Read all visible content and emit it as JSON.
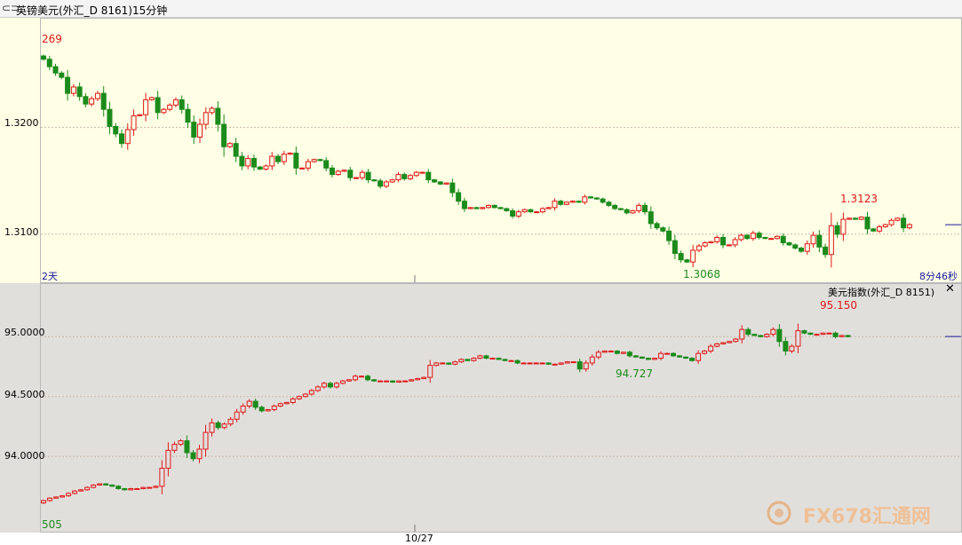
{
  "window": {
    "title": "英镑美元(外汇_D 8161)15分钟",
    "lower_title": "美元指数(外汇_D 8151)",
    "period_label": "2天",
    "countdown": "8分46秒",
    "date_label": "10/27",
    "watermark_text": "FX678汇通网"
  },
  "chart_data": [
    {
      "type": "candlestick",
      "name": "英镑美元",
      "y_ticks": [
        "1.3200",
        "1.3100"
      ],
      "ylim": [
        1.3055,
        1.3302
      ],
      "last_price_marker": 1.3109,
      "annotations": {
        "top_left": "269",
        "high": "1.3123",
        "low": "1.3068",
        "bottom_left": ""
      },
      "closes": [
        1.3264,
        1.3257,
        1.3251,
        1.3247,
        1.3232,
        1.3238,
        1.3229,
        1.3222,
        1.3227,
        1.3232,
        1.3217,
        1.3201,
        1.3194,
        1.3185,
        1.3198,
        1.3211,
        1.3212,
        1.3226,
        1.3228,
        1.3214,
        1.3217,
        1.3221,
        1.3226,
        1.3217,
        1.3205,
        1.3191,
        1.3203,
        1.3214,
        1.3218,
        1.3203,
        1.3182,
        1.3185,
        1.3173,
        1.3164,
        1.3171,
        1.3163,
        1.3161,
        1.3164,
        1.3173,
        1.3168,
        1.3175,
        1.3176,
        1.3162,
        1.3162,
        1.3168,
        1.317,
        1.3169,
        1.3162,
        1.3156,
        1.3159,
        1.316,
        1.3153,
        1.3153,
        1.3158,
        1.3151,
        1.315,
        1.3145,
        1.3149,
        1.3151,
        1.3156,
        1.3152,
        1.3155,
        1.3158,
        1.3158,
        1.3151,
        1.3149,
        1.3147,
        1.3148,
        1.3139,
        1.3131,
        1.3124,
        1.3125,
        1.3124,
        1.3125,
        1.3127,
        1.3125,
        1.3124,
        1.3122,
        1.3117,
        1.3121,
        1.3123,
        1.3121,
        1.3121,
        1.3124,
        1.3125,
        1.3131,
        1.3128,
        1.313,
        1.3131,
        1.313,
        1.3135,
        1.3134,
        1.3133,
        1.313,
        1.3127,
        1.3124,
        1.3123,
        1.312,
        1.3122,
        1.3127,
        1.3121,
        1.311,
        1.3106,
        1.3103,
        1.3094,
        1.3082,
        1.3076,
        1.3074,
        1.3085,
        1.3089,
        1.3092,
        1.3093,
        1.3097,
        1.309,
        1.309,
        1.3095,
        1.3099,
        1.3096,
        1.3101,
        1.3097,
        1.3096,
        1.3096,
        1.3098,
        1.3092,
        1.309,
        1.3087,
        1.3084,
        1.3091,
        1.3099,
        1.3088,
        1.3081,
        1.3108,
        1.31,
        1.3114,
        1.3115,
        1.3114,
        1.3116,
        1.3105,
        1.3103,
        1.3107,
        1.3109,
        1.3113,
        1.3115,
        1.3106,
        1.3109
      ]
    },
    {
      "type": "candlestick",
      "name": "美元指数",
      "y_ticks": [
        "95.0000",
        "94.5000",
        "94.0000"
      ],
      "ylim": [
        93.37,
        95.44
      ],
      "last_price_marker": 95.001,
      "annotations": {
        "top_left": "",
        "high": "95.150",
        "low": "94.727",
        "bottom_left": "505"
      },
      "closes": [
        93.63,
        93.65,
        93.66,
        93.67,
        93.69,
        93.71,
        93.72,
        93.74,
        93.76,
        93.77,
        93.76,
        93.75,
        93.73,
        93.72,
        93.73,
        93.73,
        93.74,
        93.74,
        93.75,
        93.9,
        94.05,
        94.1,
        94.13,
        94.03,
        93.98,
        94.06,
        94.2,
        94.28,
        94.24,
        94.27,
        94.31,
        94.37,
        94.42,
        94.46,
        94.41,
        94.38,
        94.39,
        94.42,
        94.44,
        94.45,
        94.48,
        94.5,
        94.52,
        94.55,
        94.58,
        94.61,
        94.58,
        94.61,
        94.63,
        94.64,
        94.67,
        94.67,
        94.64,
        94.63,
        94.63,
        94.63,
        94.62,
        94.63,
        94.63,
        94.64,
        94.65,
        94.66,
        94.76,
        94.78,
        94.78,
        94.77,
        94.79,
        94.81,
        94.8,
        94.82,
        94.84,
        94.82,
        94.82,
        94.81,
        94.8,
        94.8,
        94.78,
        94.78,
        94.78,
        94.78,
        94.78,
        94.77,
        94.77,
        94.78,
        94.79,
        94.79,
        94.73,
        94.78,
        94.83,
        94.87,
        94.88,
        94.88,
        94.86,
        94.87,
        94.84,
        94.83,
        94.82,
        94.81,
        94.82,
        94.86,
        94.86,
        94.84,
        94.83,
        94.82,
        94.8,
        94.86,
        94.88,
        94.92,
        94.94,
        94.95,
        94.96,
        94.98,
        95.06,
        95.02,
        95.01,
        95.0,
        95.02,
        95.06,
        94.96,
        94.88,
        94.92,
        95.05,
        95.03,
        95.02,
        95.02,
        95.03,
        95.03,
        95.0,
        95.01,
        95.0
      ]
    }
  ],
  "colors": {
    "up": "#e01818",
    "down": "#1b8b1b",
    "last_marker": "#1a1a9a",
    "grid": "#c8b8a8",
    "annotation_high": "#e01818",
    "annotation_low": "#1e8c1e"
  }
}
